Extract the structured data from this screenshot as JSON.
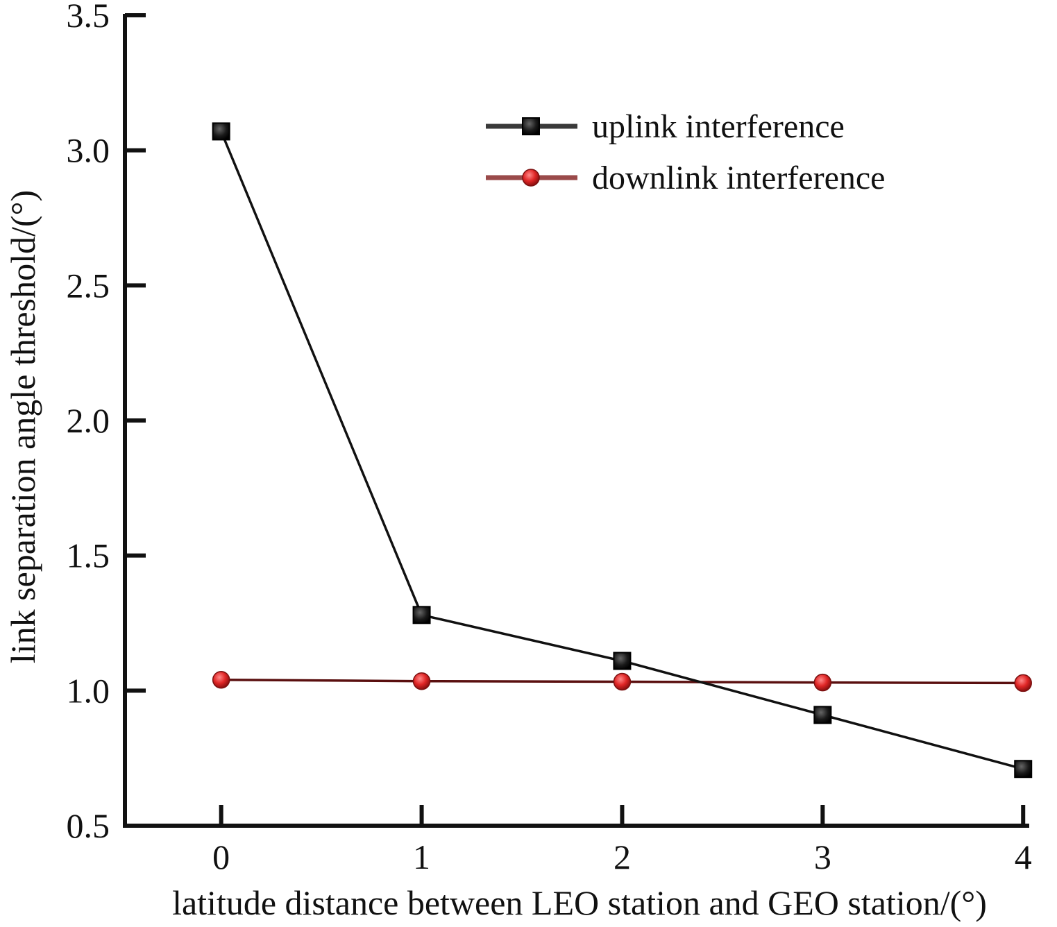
{
  "chart_data": {
    "type": "line",
    "title": "",
    "xlabel": "latitude distance between LEO station and GEO station/(°)",
    "ylabel": "link separation angle threshold/(°)",
    "x": [
      0,
      1,
      2,
      3,
      4
    ],
    "xticks": [
      "0",
      "1",
      "2",
      "3",
      "4"
    ],
    "yticks": [
      "0.5",
      "1.0",
      "1.5",
      "2.0",
      "2.5",
      "3.0",
      "3.5"
    ],
    "xlim": [
      -0.48,
      4.02
    ],
    "ylim": [
      0.5,
      3.5
    ],
    "grid": false,
    "legend_position": "top-right",
    "series": [
      {
        "name": "uplink interference",
        "color": "#111111",
        "marker": "square",
        "values": [
          3.07,
          1.28,
          1.11,
          0.91,
          0.71
        ]
      },
      {
        "name": "downlink interference",
        "color": "#d42a2a",
        "line_color": "#5a0f0f",
        "marker": "circle",
        "values": [
          1.04,
          1.035,
          1.033,
          1.03,
          1.028
        ]
      }
    ]
  }
}
